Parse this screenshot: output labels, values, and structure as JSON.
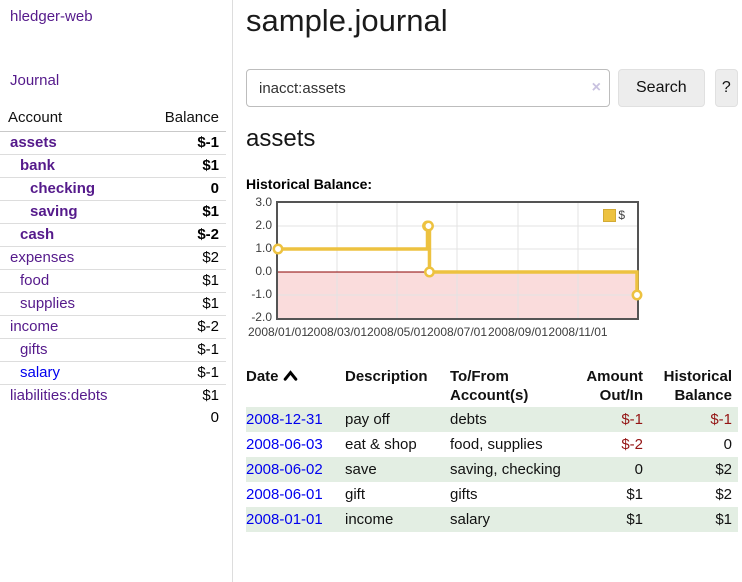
{
  "app": {
    "brand": "hledger-web",
    "title": "sample.journal"
  },
  "sidebar": {
    "nav_journal": "Journal",
    "accounts": {
      "col_account": "Account",
      "col_balance": "Balance",
      "rows": [
        {
          "name": "assets",
          "balance": "$-1",
          "depth": 1,
          "matched": true,
          "balance_tone": "neg-strong"
        },
        {
          "name": "bank",
          "balance": "$1",
          "depth": 2,
          "matched": true,
          "balance_tone": "normal"
        },
        {
          "name": "checking",
          "balance": "0",
          "depth": 3,
          "matched": true,
          "balance_tone": "normal"
        },
        {
          "name": "saving",
          "balance": "$1",
          "depth": 3,
          "matched": true,
          "balance_tone": "normal"
        },
        {
          "name": "cash",
          "balance": "$-2",
          "depth": 2,
          "matched": true,
          "balance_tone": "neg-strong"
        },
        {
          "name": "expenses",
          "balance": "$2",
          "depth": 1,
          "matched": false,
          "balance_tone": "normal"
        },
        {
          "name": "food",
          "balance": "$1",
          "depth": 2,
          "matched": false,
          "balance_tone": "normal"
        },
        {
          "name": "supplies",
          "balance": "$1",
          "depth": 2,
          "matched": false,
          "balance_tone": "normal"
        },
        {
          "name": "income",
          "balance": "$-2",
          "depth": 1,
          "matched": false,
          "balance_tone": "neg-soft"
        },
        {
          "name": "gifts",
          "balance": "$-1",
          "depth": 2,
          "matched": false,
          "balance_tone": "neg-soft"
        },
        {
          "name": "salary",
          "balance": "$-1",
          "depth": 2,
          "matched": false,
          "balance_tone": "neg-soft",
          "link_tone": "unvisited"
        },
        {
          "name": "liabilities:debts",
          "balance": "$1",
          "depth": 1,
          "matched": false,
          "balance_tone": "normal"
        }
      ],
      "total": "0"
    }
  },
  "search": {
    "value": "inacct:assets",
    "clear_icon": "×",
    "button": "Search",
    "help": "?"
  },
  "account_view": {
    "heading": "assets",
    "chart_title": "Historical Balance:"
  },
  "chart_data": {
    "type": "line",
    "step": true,
    "title": "Historical Balance",
    "series": [
      {
        "name": "$",
        "color": "#edc240",
        "points": [
          {
            "date": "2008-01-01",
            "value": 1
          },
          {
            "date": "2008-06-01",
            "value": 2
          },
          {
            "date": "2008-06-02",
            "value": 2
          },
          {
            "date": "2008-06-03",
            "value": 0
          },
          {
            "date": "2008-12-31",
            "value": -1
          }
        ]
      }
    ],
    "x_ticks": [
      "2008/01/01",
      "2008/03/01",
      "2008/05/01",
      "2008/07/01",
      "2008/09/01",
      "2008/11/01"
    ],
    "y_ticks": [
      3.0,
      2.0,
      1.0,
      0.0,
      -1.0,
      -2.0
    ],
    "ylim": [
      -2,
      3
    ],
    "x_range_days": 365,
    "grid": true,
    "legend_position": "top-right",
    "negative_region_color": "#fadcdc",
    "zero_line_color": "#8b0000",
    "grid_color": "#e3e3e3"
  },
  "register": {
    "columns": {
      "date": "Date",
      "description": "Description",
      "tofrom_line1": "To/From",
      "tofrom_line2": "Account(s)",
      "amount_line1": "Amount",
      "amount_line2": "Out/In",
      "balance_line1": "Historical",
      "balance_line2": "Balance"
    },
    "rows": [
      {
        "date": "2008-12-31",
        "description": "pay off",
        "accounts": "debts",
        "amount": "$-1",
        "amount_tone": "neg-strong",
        "balance": "$-1",
        "balance_tone": "neg-strong"
      },
      {
        "date": "2008-06-03",
        "description": "eat & shop",
        "accounts": "food, supplies",
        "amount": "$-2",
        "amount_tone": "neg-strong",
        "balance": "0",
        "balance_tone": "normal"
      },
      {
        "date": "2008-06-02",
        "description": "save",
        "accounts": "saving, checking",
        "amount": "0",
        "amount_tone": "normal",
        "balance": "$2",
        "balance_tone": "normal"
      },
      {
        "date": "2008-06-01",
        "description": "gift",
        "accounts": "gifts",
        "amount": "$1",
        "amount_tone": "normal",
        "balance": "$2",
        "balance_tone": "normal"
      },
      {
        "date": "2008-01-01",
        "description": "income",
        "accounts": "salary",
        "amount": "$1",
        "amount_tone": "normal",
        "balance": "$1",
        "balance_tone": "normal"
      }
    ]
  },
  "colors": {
    "accent_gold": "#edc240",
    "negative_strong": "#941414",
    "negative_soft": "#b87a7a",
    "link_purple": "#551a8b",
    "link_blue": "#0000ee",
    "row_green": "#e3eee3",
    "chart_border": "#545454"
  }
}
